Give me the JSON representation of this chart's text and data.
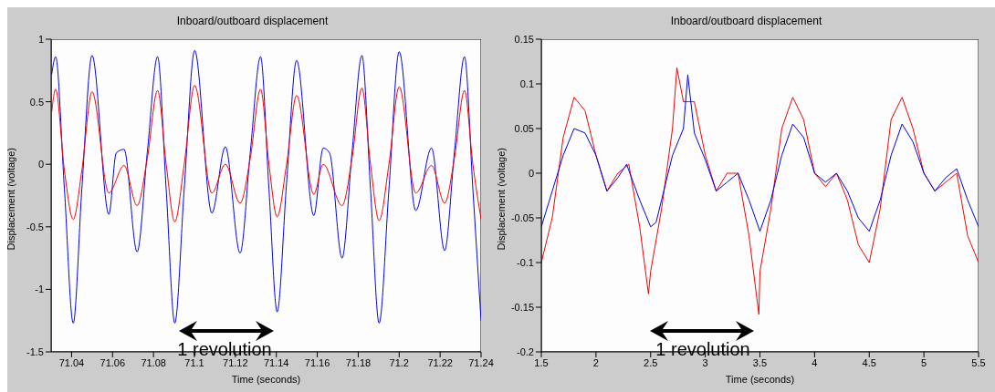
{
  "chart_data": [
    {
      "type": "line",
      "title": "Inboard/outboard displacement",
      "xlabel": "Time (seconds)",
      "ylabel": "Displacement (voltage)",
      "xlim": [
        71.03,
        71.24
      ],
      "xticks": [
        71.04,
        71.06,
        71.08,
        71.1,
        71.12,
        71.14,
        71.16,
        71.18,
        71.2,
        71.22,
        71.24
      ],
      "ylim": [
        -1.5,
        1
      ],
      "yticks": [
        -1.5,
        -1,
        -0.5,
        0,
        0.5,
        1
      ],
      "marker": "none",
      "line_style": "solid",
      "annotations": [
        "1 revolution"
      ],
      "series": [
        {
          "color": "#0000ff",
          "x": [
            71.0303,
            71.0322,
            71.0365,
            71.0408,
            71.045,
            71.05,
            71.0582,
            71.0618,
            71.0656,
            71.072,
            71.077,
            71.082,
            71.0862,
            71.0904,
            71.095,
            71.1001,
            71.1085,
            71.1151,
            71.1223,
            71.1273,
            71.1323,
            71.1364,
            71.1404,
            71.145,
            71.1499,
            71.1583,
            71.1629,
            71.166,
            71.1721,
            71.177,
            71.1818,
            71.186,
            71.1902,
            71.195,
            71.2,
            71.2081,
            71.2158,
            71.2222,
            71.227,
            71.2319,
            71.236,
            71.24
          ],
          "values": [
            0.72,
            0.86,
            -0.2,
            -1.27,
            -0.2,
            0.87,
            -0.4,
            0.09,
            0.12,
            -0.7,
            0.1,
            0.86,
            -0.2,
            -1.27,
            -0.2,
            0.91,
            -0.39,
            0.14,
            -0.71,
            0.1,
            0.86,
            -0.2,
            -1.18,
            -0.15,
            0.83,
            -0.41,
            0.13,
            0.09,
            -0.75,
            0.1,
            0.87,
            -0.2,
            -1.27,
            -0.2,
            0.9,
            -0.37,
            0.13,
            -0.69,
            0.1,
            0.86,
            -0.2,
            -1.25
          ]
        },
        {
          "color": "#ff0000",
          "x": [
            71.0303,
            71.0322,
            71.0365,
            71.0408,
            71.045,
            71.05,
            71.0582,
            71.0656,
            71.072,
            71.077,
            71.082,
            71.0862,
            71.0904,
            71.095,
            71.1001,
            71.1085,
            71.1151,
            71.1223,
            71.1273,
            71.1323,
            71.1364,
            71.1404,
            71.145,
            71.1499,
            71.1583,
            71.1629,
            71.1721,
            71.177,
            71.1818,
            71.186,
            71.1902,
            71.195,
            71.2,
            71.2081,
            71.2158,
            71.2222,
            71.227,
            71.2319,
            71.236,
            71.24
          ],
          "values": [
            0.42,
            0.6,
            -0.05,
            -0.44,
            -0.05,
            0.58,
            -0.23,
            -0.01,
            -0.33,
            0.05,
            0.59,
            0.0,
            -0.46,
            0.0,
            0.63,
            -0.23,
            0.0,
            -0.31,
            0.05,
            0.6,
            0.0,
            -0.42,
            0.0,
            0.55,
            -0.24,
            0.0,
            -0.33,
            0.05,
            0.61,
            0.0,
            -0.45,
            0.0,
            0.62,
            -0.23,
            -0.01,
            -0.31,
            0.05,
            0.59,
            0.0,
            -0.44
          ]
        }
      ]
    },
    {
      "type": "line",
      "title": "Inboard/outboard displacement",
      "xlabel": "Time (seconds)",
      "ylabel": "Displacement (voltage)",
      "xlim": [
        1.5,
        5.5
      ],
      "xticks": [
        1.5,
        2,
        2.5,
        3,
        3.5,
        4,
        4.5,
        5,
        5.5
      ],
      "ylim": [
        -0.2,
        0.15
      ],
      "yticks": [
        -0.2,
        -0.15,
        -0.1,
        -0.05,
        0,
        0.05,
        0.1,
        0.15
      ],
      "marker": "none",
      "line_style": "solid",
      "annotations": [
        "1 revolution"
      ],
      "series": [
        {
          "color": "#ff0000",
          "x": [
            1.5,
            1.6,
            1.7,
            1.8,
            1.9,
            2.0,
            2.1,
            2.2,
            2.3,
            2.4,
            2.48,
            2.5,
            2.6,
            2.7,
            2.74,
            2.8,
            2.9,
            3.0,
            3.1,
            3.2,
            3.3,
            3.4,
            3.49,
            3.5,
            3.6,
            3.7,
            3.8,
            3.9,
            4.0,
            4.1,
            4.2,
            4.3,
            4.4,
            4.5,
            4.6,
            4.7,
            4.8,
            4.9,
            5.0,
            5.1,
            5.2,
            5.3,
            5.4,
            5.5
          ],
          "values": [
            -0.1,
            -0.05,
            0.04,
            0.085,
            0.07,
            0.02,
            -0.02,
            0.0,
            0.01,
            -0.06,
            -0.135,
            -0.11,
            -0.04,
            0.05,
            0.118,
            0.08,
            0.08,
            0.02,
            -0.02,
            0.0,
            0.0,
            -0.07,
            -0.158,
            -0.11,
            -0.04,
            0.05,
            0.085,
            0.06,
            0.0,
            -0.015,
            0.0,
            -0.03,
            -0.08,
            -0.1,
            -0.04,
            0.06,
            0.085,
            0.05,
            0.0,
            -0.02,
            -0.01,
            0.0,
            -0.07,
            -0.1
          ]
        },
        {
          "color": "#0000ff",
          "x": [
            1.5,
            1.6,
            1.7,
            1.8,
            1.9,
            2.0,
            2.05,
            2.1,
            2.2,
            2.28,
            2.4,
            2.5,
            2.55,
            2.6,
            2.7,
            2.8,
            2.84,
            2.9,
            3.0,
            3.1,
            3.2,
            3.3,
            3.4,
            3.5,
            3.6,
            3.7,
            3.8,
            3.9,
            4.0,
            4.1,
            4.2,
            4.3,
            4.4,
            4.5,
            4.6,
            4.7,
            4.8,
            4.9,
            5.0,
            5.1,
            5.2,
            5.3,
            5.4,
            5.5
          ],
          "values": [
            -0.06,
            -0.02,
            0.02,
            0.05,
            0.045,
            0.02,
            0.0,
            -0.02,
            -0.005,
            0.01,
            -0.03,
            -0.06,
            -0.055,
            -0.03,
            0.02,
            0.05,
            0.11,
            0.045,
            0.015,
            -0.02,
            -0.01,
            0.0,
            -0.03,
            -0.065,
            -0.03,
            0.02,
            0.055,
            0.04,
            0.0,
            -0.01,
            0.0,
            -0.02,
            -0.05,
            -0.065,
            -0.03,
            0.02,
            0.055,
            0.035,
            0.0,
            -0.02,
            -0.005,
            0.005,
            -0.03,
            -0.06
          ]
        }
      ]
    }
  ]
}
